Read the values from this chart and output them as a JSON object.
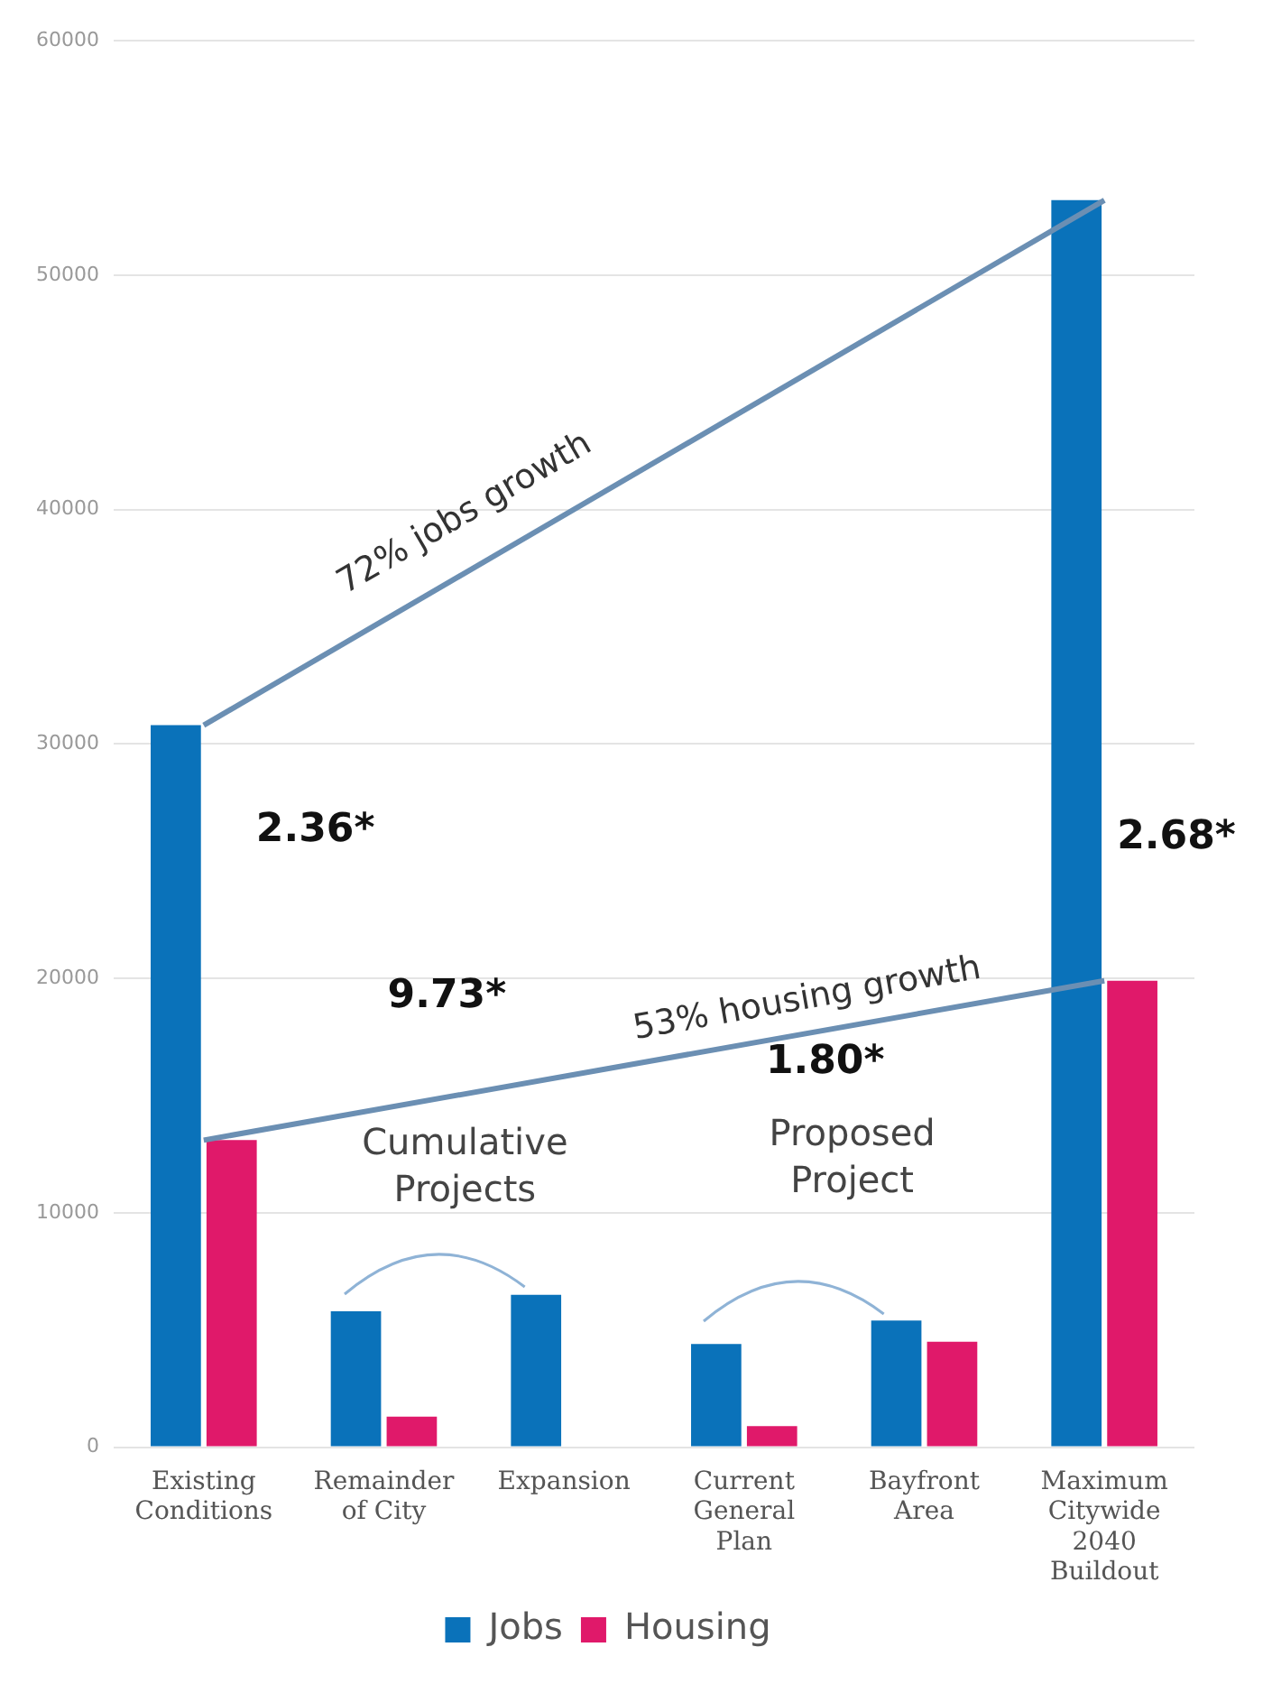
{
  "chart_data": {
    "type": "bar",
    "categories": [
      "Existing Conditions",
      "Remainder of City",
      "Expansion",
      "Current General Plan",
      "Bayfront Area",
      "Maximum Citywide 2040 Buildout"
    ],
    "series": [
      {
        "name": "Jobs",
        "color": "#0a72ba",
        "values": [
          30800,
          5800,
          6500,
          4400,
          5400,
          53200
        ]
      },
      {
        "name": "Housing",
        "color": "#e0196a",
        "values": [
          13100,
          1300,
          0,
          900,
          4500,
          19900
        ]
      },
      {
        "type": "line",
        "color": "#6b8fb3",
        "values": [
          30800,
          null,
          null,
          null,
          null,
          53200
        ]
      },
      {
        "type": "line",
        "color": "#6b8fb3",
        "values": [
          13100,
          null,
          null,
          null,
          null,
          19900
        ]
      }
    ],
    "ylim": [
      0,
      60000
    ],
    "yticks": [
      0,
      10000,
      20000,
      30000,
      40000,
      50000,
      60000
    ],
    "grid": "y",
    "legend": "bottom",
    "annotations": [
      "72% jobs growth",
      "53% housing growth",
      "2.36*",
      "9.73*",
      "1.80*",
      "2.68*",
      "Cumulative Projects",
      "Proposed Project"
    ]
  }
}
